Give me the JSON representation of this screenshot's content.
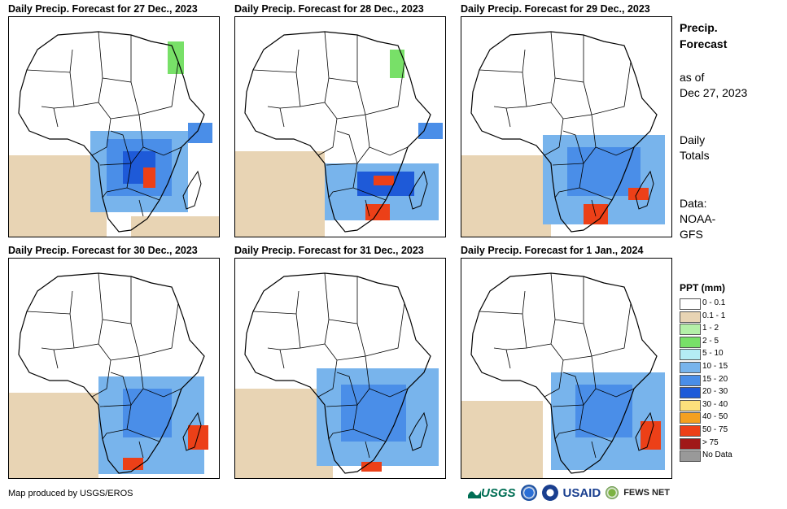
{
  "panels": [
    {
      "title": "Daily Precip. Forecast for 27 Dec., 2023"
    },
    {
      "title": "Daily Precip. Forecast for 28 Dec., 2023"
    },
    {
      "title": "Daily Precip. Forecast for 29 Dec., 2023"
    },
    {
      "title": "Daily Precip. Forecast for 30 Dec., 2023"
    },
    {
      "title": "Daily Precip. Forecast for 31 Dec., 2023"
    },
    {
      "title": "Daily Precip. Forecast for 1 Jan., 2024"
    }
  ],
  "sidebar": {
    "title_line1": "Precip.",
    "title_line2": "Forecast",
    "asof_line1": "as of",
    "asof_line2": "Dec 27, 2023",
    "daily_line1": "Daily",
    "daily_line2": "Totals",
    "data_line1": "Data:",
    "data_line2": "NOAA-",
    "data_line3": "GFS"
  },
  "legend": {
    "title": "PPT (mm)",
    "items": [
      {
        "label": "0 - 0.1",
        "color": "#ffffff"
      },
      {
        "label": "0.1 - 1",
        "color": "#e8d4b4"
      },
      {
        "label": "1 - 2",
        "color": "#b4f0a8"
      },
      {
        "label": "2 - 5",
        "color": "#78e068"
      },
      {
        "label": "5 - 10",
        "color": "#b4ecf4"
      },
      {
        "label": "10 - 15",
        "color": "#78b4ec"
      },
      {
        "label": "15 - 20",
        "color": "#4a8ee8"
      },
      {
        "label": "20 - 30",
        "color": "#1e5ad8"
      },
      {
        "label": "30 - 40",
        "color": "#fce07c"
      },
      {
        "label": "40 - 50",
        "color": "#f4a020"
      },
      {
        "label": "50 - 75",
        "color": "#ec4018"
      },
      {
        "label": "> 75",
        "color": "#a01818"
      },
      {
        "label": "No Data",
        "color": "#999999"
      }
    ]
  },
  "footer": {
    "credit": "Map produced by USGS/EROS",
    "logo_usgs": "USGS",
    "logo_usaid": "USAID",
    "logo_fews": "FEWS NET"
  }
}
